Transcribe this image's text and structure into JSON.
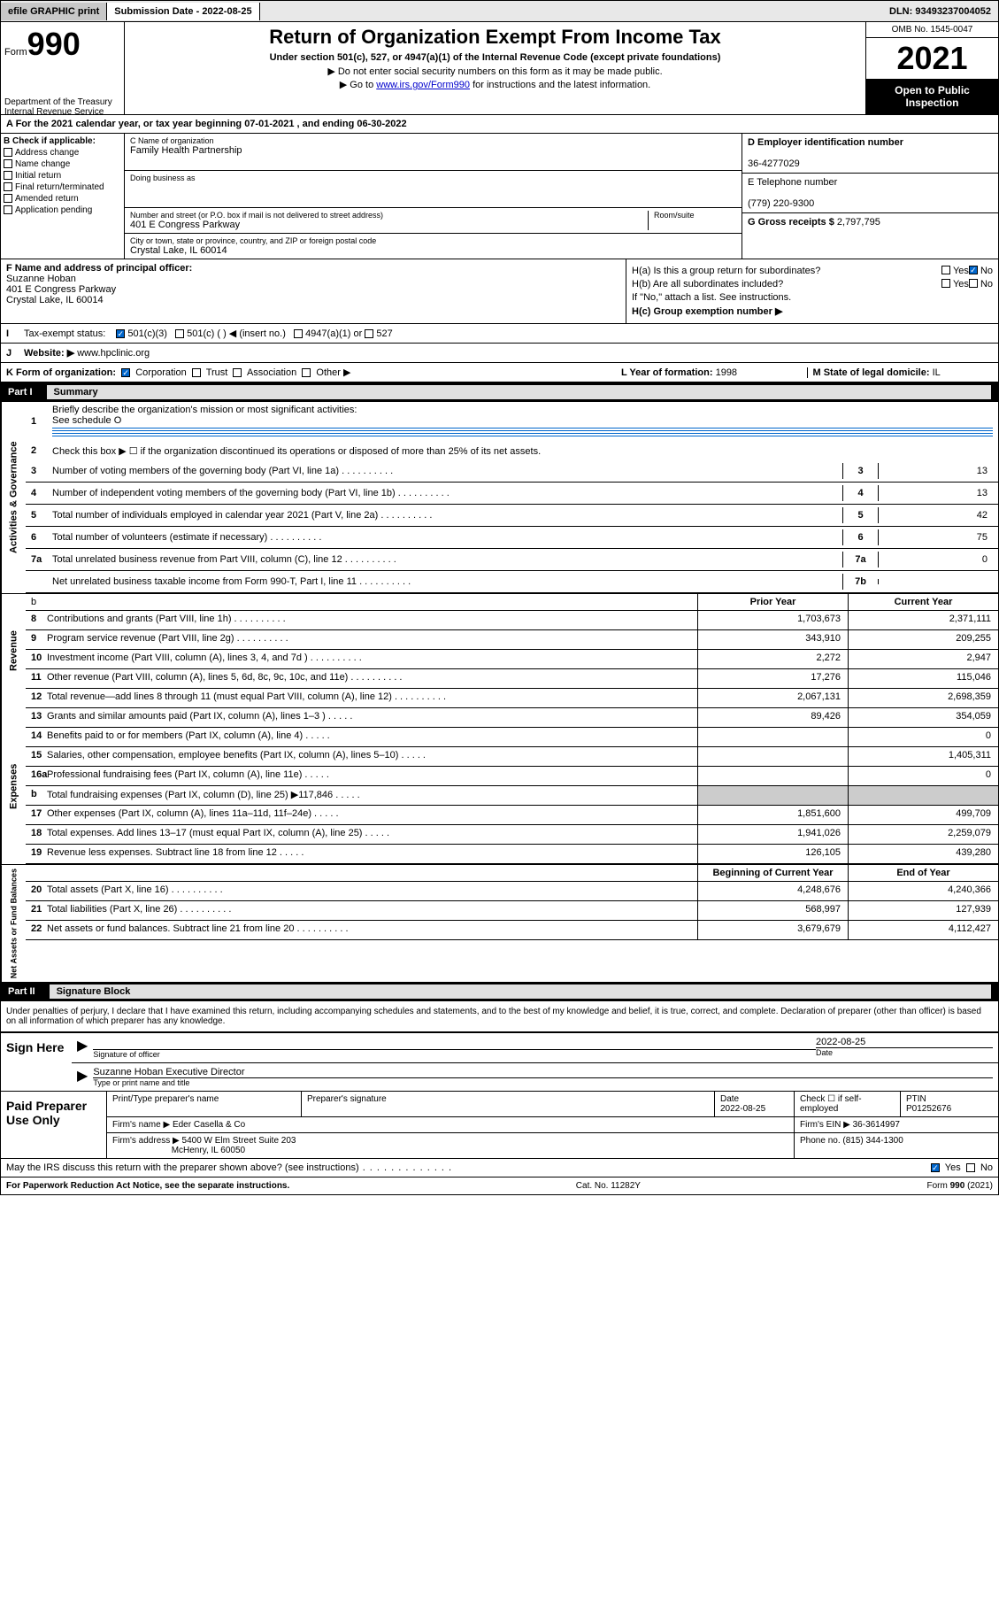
{
  "topbar": {
    "efile": "efile GRAPHIC print",
    "submission_label": "Submission Date - 2022-08-25",
    "dln": "DLN: 93493237004052"
  },
  "header": {
    "form_label": "Form",
    "form_number": "990",
    "title": "Return of Organization Exempt From Income Tax",
    "subtitle": "Under section 501(c), 527, or 4947(a)(1) of the Internal Revenue Code (except private foundations)",
    "instruction1": "▶ Do not enter social security numbers on this form as it may be made public.",
    "instruction2_pre": "▶ Go to ",
    "instruction2_link": "www.irs.gov/Form990",
    "instruction2_post": " for instructions and the latest information.",
    "omb": "OMB No. 1545-0047",
    "year": "2021",
    "open_public": "Open to Public Inspection",
    "dept": "Department of the Treasury",
    "irs": "Internal Revenue Service"
  },
  "section_a": {
    "a_line": "A For the 2021 calendar year, or tax year beginning 07-01-2021    , and ending 06-30-2022",
    "b_label": "B Check if applicable:",
    "checks": [
      "Address change",
      "Name change",
      "Initial return",
      "Final return/terminated",
      "Amended return",
      "Application pending"
    ],
    "c_label": "C Name of organization",
    "c_name": "Family Health Partnership",
    "dba_label": "Doing business as",
    "addr_label": "Number and street (or P.O. box if mail is not delivered to street address)",
    "addr": "401 E Congress Parkway",
    "room_label": "Room/suite",
    "city_label": "City or town, state or province, country, and ZIP or foreign postal code",
    "city": "Crystal Lake, IL  60014",
    "d_label": "D Employer identification number",
    "d_ein": "36-4277029",
    "e_label": "E Telephone number",
    "e_phone": "(779) 220-9300",
    "g_label": "G Gross receipts $",
    "g_amount": "2,797,795",
    "f_label": "F Name and address of principal officer:",
    "f_name": "Suzanne Hoban",
    "f_addr1": "401 E Congress Parkway",
    "f_addr2": "Crystal Lake, IL  60014",
    "ha_label": "H(a)  Is this a group return for subordinates?",
    "hb_label": "H(b)  Are all subordinates included?",
    "hb_note": "If \"No,\" attach a list. See instructions.",
    "hc_label": "H(c)  Group exemption number ▶",
    "i_label": "Tax-exempt status:",
    "i_501c3": "501(c)(3)",
    "i_501c": "501(c) (  ) ◀ (insert no.)",
    "i_4947": "4947(a)(1) or",
    "i_527": "527",
    "j_label": "Website: ▶",
    "j_site": "www.hpclinic.org",
    "k_label": "K Form of organization:",
    "k_corp": "Corporation",
    "k_trust": "Trust",
    "k_assoc": "Association",
    "k_other": "Other ▶",
    "l_label": "L Year of formation:",
    "l_val": "1998",
    "m_label": "M State of legal domicile:",
    "m_val": "IL"
  },
  "part1": {
    "header": "Part I",
    "title": "Summary",
    "line1": "Briefly describe the organization's mission or most significant activities:",
    "line1_val": "See schedule O",
    "line2": "Check this box ▶ ☐  if the organization discontinued its operations or disposed of more than 25% of its net assets.",
    "vert1": "Activities & Governance",
    "vert2": "Revenue",
    "vert3": "Expenses",
    "vert4": "Net Assets or Fund Balances",
    "rows_gov": [
      {
        "n": "3",
        "t": "Number of voting members of the governing body (Part VI, line 1a)",
        "c": "3",
        "v": "13"
      },
      {
        "n": "4",
        "t": "Number of independent voting members of the governing body (Part VI, line 1b)",
        "c": "4",
        "v": "13"
      },
      {
        "n": "5",
        "t": "Total number of individuals employed in calendar year 2021 (Part V, line 2a)",
        "c": "5",
        "v": "42"
      },
      {
        "n": "6",
        "t": "Total number of volunteers (estimate if necessary)",
        "c": "6",
        "v": "75"
      },
      {
        "n": "7a",
        "t": "Total unrelated business revenue from Part VIII, column (C), line 12",
        "c": "7a",
        "v": "0"
      },
      {
        "n": "",
        "t": "Net unrelated business taxable income from Form 990-T, Part I, line 11",
        "c": "7b",
        "v": ""
      }
    ],
    "col_prior": "Prior Year",
    "col_current": "Current Year",
    "col_beg": "Beginning of Current Year",
    "col_end": "End of Year",
    "rows_rev": [
      {
        "n": "8",
        "t": "Contributions and grants (Part VIII, line 1h)",
        "p": "1,703,673",
        "c": "2,371,111"
      },
      {
        "n": "9",
        "t": "Program service revenue (Part VIII, line 2g)",
        "p": "343,910",
        "c": "209,255"
      },
      {
        "n": "10",
        "t": "Investment income (Part VIII, column (A), lines 3, 4, and 7d )",
        "p": "2,272",
        "c": "2,947"
      },
      {
        "n": "11",
        "t": "Other revenue (Part VIII, column (A), lines 5, 6d, 8c, 9c, 10c, and 11e)",
        "p": "17,276",
        "c": "115,046"
      },
      {
        "n": "12",
        "t": "Total revenue—add lines 8 through 11 (must equal Part VIII, column (A), line 12)",
        "p": "2,067,131",
        "c": "2,698,359"
      }
    ],
    "rows_exp": [
      {
        "n": "13",
        "t": "Grants and similar amounts paid (Part IX, column (A), lines 1–3 )",
        "p": "89,426",
        "c": "354,059"
      },
      {
        "n": "14",
        "t": "Benefits paid to or for members (Part IX, column (A), line 4)",
        "p": "",
        "c": "0"
      },
      {
        "n": "15",
        "t": "Salaries, other compensation, employee benefits (Part IX, column (A), lines 5–10)",
        "p": "",
        "c": "1,405,311"
      },
      {
        "n": "16a",
        "t": "Professional fundraising fees (Part IX, column (A), line 11e)",
        "p": "",
        "c": "0"
      },
      {
        "n": "b",
        "t": "Total fundraising expenses (Part IX, column (D), line 25) ▶117,846",
        "p": "shaded",
        "c": "shaded"
      },
      {
        "n": "17",
        "t": "Other expenses (Part IX, column (A), lines 11a–11d, 11f–24e)",
        "p": "1,851,600",
        "c": "499,709"
      },
      {
        "n": "18",
        "t": "Total expenses. Add lines 13–17 (must equal Part IX, column (A), line 25)",
        "p": "1,941,026",
        "c": "2,259,079"
      },
      {
        "n": "19",
        "t": "Revenue less expenses. Subtract line 18 from line 12",
        "p": "126,105",
        "c": "439,280"
      }
    ],
    "rows_net": [
      {
        "n": "20",
        "t": "Total assets (Part X, line 16)",
        "p": "4,248,676",
        "c": "4,240,366"
      },
      {
        "n": "21",
        "t": "Total liabilities (Part X, line 26)",
        "p": "568,997",
        "c": "127,939"
      },
      {
        "n": "22",
        "t": "Net assets or fund balances. Subtract line 21 from line 20",
        "p": "3,679,679",
        "c": "4,112,427"
      }
    ]
  },
  "part2": {
    "header": "Part II",
    "title": "Signature Block",
    "declaration": "Under penalties of perjury, I declare that I have examined this return, including accompanying schedules and statements, and to the best of my knowledge and belief, it is true, correct, and complete. Declaration of preparer (other than officer) is based on all information of which preparer has any knowledge.",
    "sign_here": "Sign Here",
    "sig_officer": "Signature of officer",
    "sig_date": "2022-08-25",
    "sig_name": "Suzanne Hoban  Executive Director",
    "sig_name_label": "Type or print name and title",
    "paid_prep": "Paid Preparer Use Only",
    "prep_name_label": "Print/Type preparer's name",
    "prep_sig_label": "Preparer's signature",
    "prep_date_label": "Date",
    "prep_date": "2022-08-25",
    "prep_check_label": "Check ☐ if self-employed",
    "ptin_label": "PTIN",
    "ptin": "P01252676",
    "firm_name_label": "Firm's name      ▶",
    "firm_name": "Eder Casella & Co",
    "firm_ein_label": "Firm's EIN ▶",
    "firm_ein": "36-3614997",
    "firm_addr_label": "Firm's address ▶",
    "firm_addr1": "5400 W Elm Street Suite 203",
    "firm_addr2": "McHenry, IL  60050",
    "firm_phone_label": "Phone no.",
    "firm_phone": "(815) 344-1300",
    "discuss": "May the IRS discuss this return with the preparer shown above? (see instructions)",
    "yes": "Yes",
    "no": "No"
  },
  "footer": {
    "left": "For Paperwork Reduction Act Notice, see the separate instructions.",
    "mid": "Cat. No. 11282Y",
    "right": "Form 990 (2021)"
  }
}
